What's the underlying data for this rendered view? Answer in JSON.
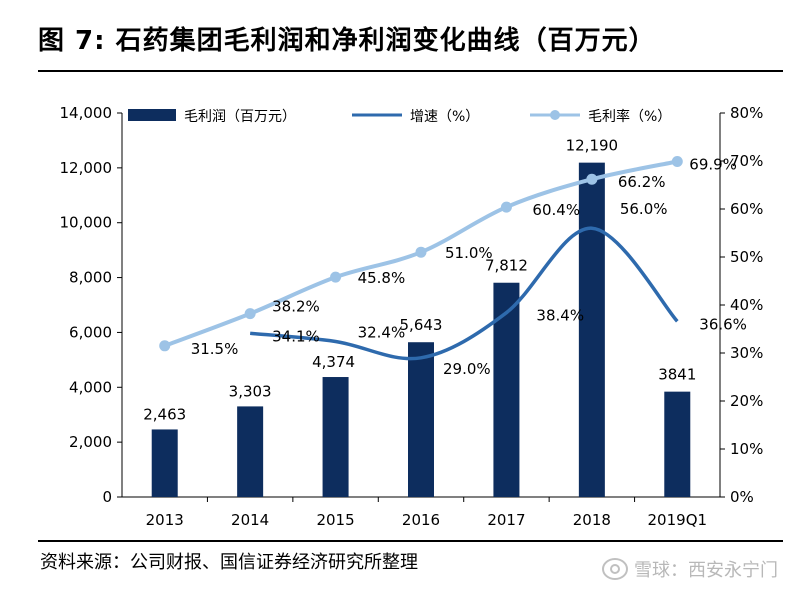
{
  "title": "图 7: 石药集团毛利润和净利润变化曲线（百万元）",
  "source": "资料来源：公司财报、国信证券经济研究所整理",
  "watermark": "雪球：西安永宁门",
  "chart_data": {
    "type": "bar",
    "categories": [
      "2013",
      "2014",
      "2015",
      "2016",
      "2017",
      "2018",
      "2019Q1"
    ],
    "y_left": {
      "ylim": [
        0,
        14000
      ],
      "ticks": [
        0,
        2000,
        4000,
        6000,
        8000,
        10000,
        12000,
        14000
      ],
      "tick_labels": [
        "0",
        "2,000",
        "4,000",
        "6,000",
        "8,000",
        "10,000",
        "12,000",
        "14,000"
      ]
    },
    "y_right": {
      "ylim": [
        0,
        80
      ],
      "ticks": [
        0,
        10,
        20,
        30,
        40,
        50,
        60,
        70,
        80
      ],
      "tick_labels": [
        "0%",
        "10%",
        "20%",
        "30%",
        "40%",
        "50%",
        "60%",
        "70%",
        "80%"
      ]
    },
    "grid": false,
    "legend_position": "top",
    "series": [
      {
        "name": "毛利润（百万元）",
        "type": "bar",
        "axis": "left",
        "color": "#0d2d5e",
        "values": [
          2463,
          3303,
          4374,
          5643,
          7812,
          12190,
          3841
        ],
        "labels": [
          "2,463",
          "3,303",
          "4,374",
          "5,643",
          "7,812",
          "12,190",
          "3841"
        ]
      },
      {
        "name": "增速（%）",
        "type": "line",
        "axis": "right",
        "color": "#2e6aad",
        "values": [
          null,
          34.1,
          32.4,
          29.0,
          38.4,
          56.0,
          36.6
        ],
        "labels": [
          "",
          "34.1%",
          "32.4%",
          "29.0%",
          "38.4%",
          "56.0%",
          "36.6%"
        ]
      },
      {
        "name": "毛利率（%）",
        "type": "line",
        "axis": "right",
        "color": "#9dc3e6",
        "values": [
          31.5,
          38.2,
          45.8,
          51.0,
          60.4,
          66.2,
          69.9
        ],
        "labels": [
          "31.5%",
          "38.2%",
          "45.8%",
          "51.0%",
          "60.4%",
          "66.2%",
          "69.9%"
        ]
      }
    ]
  }
}
